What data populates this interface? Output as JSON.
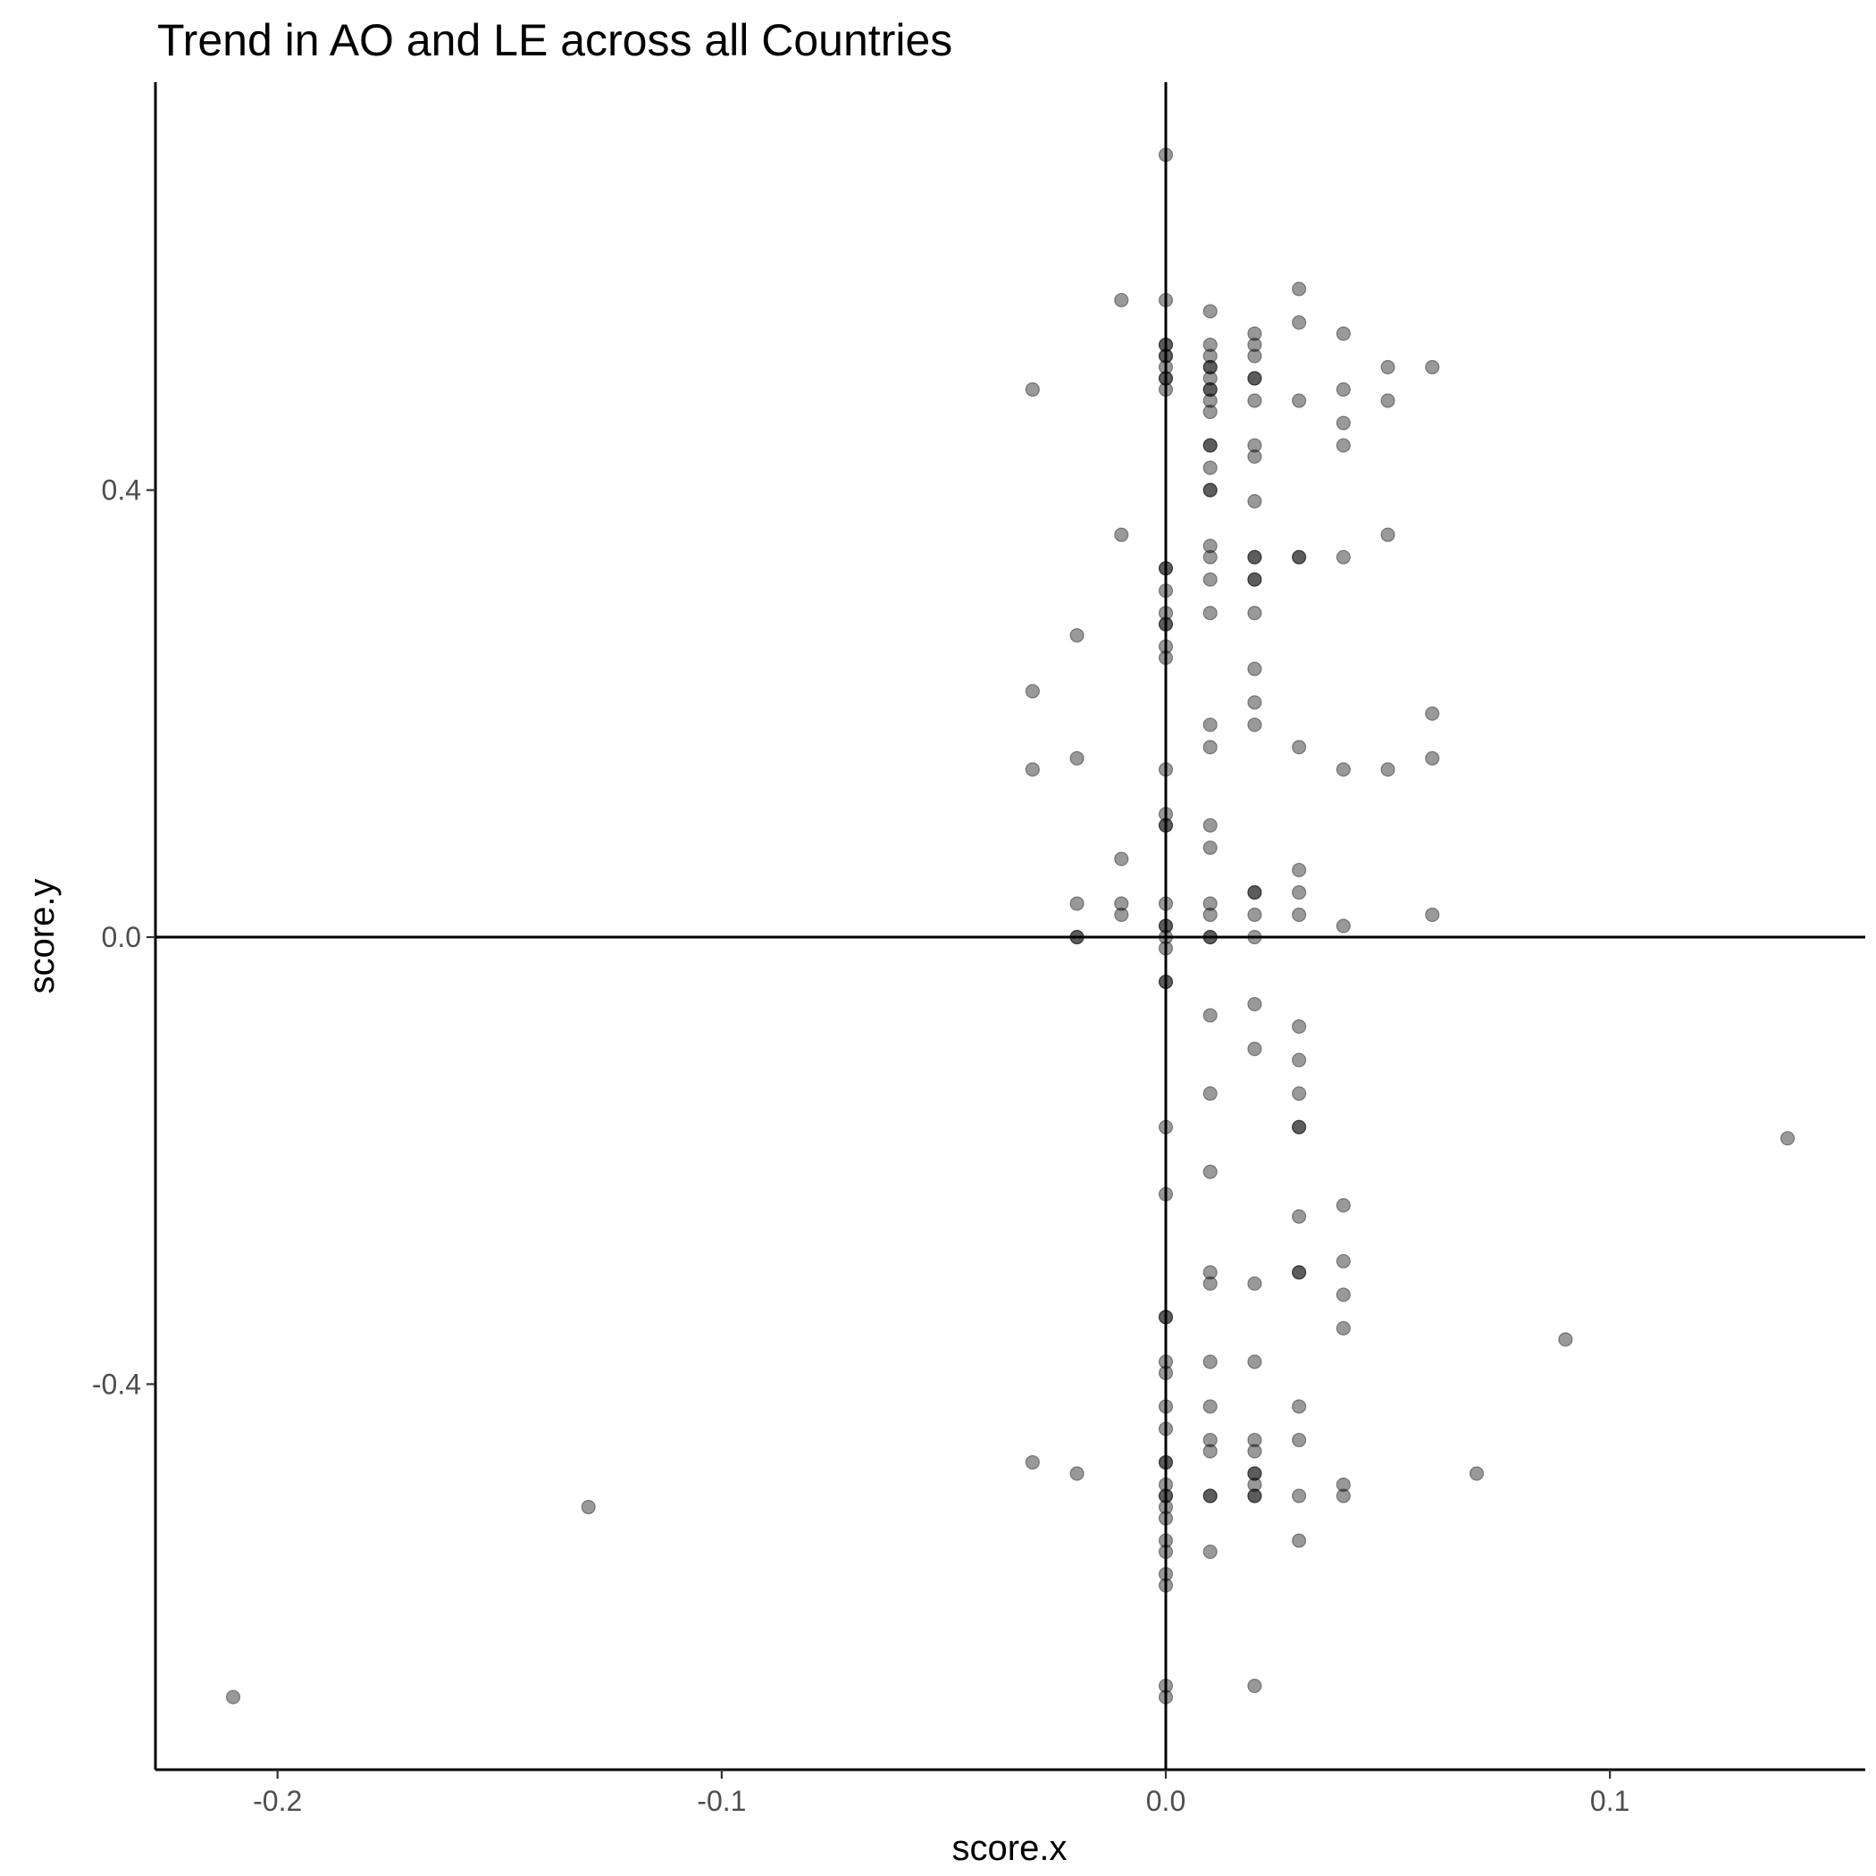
{
  "chart_data": {
    "type": "scatter",
    "title": "Trend in AO and LE across all Countries",
    "xlabel": "score.x",
    "ylabel": "score.y",
    "xlim": [
      -0.2275,
      0.1575
    ],
    "ylim": [
      -0.745,
      0.765
    ],
    "x_ticks": [
      -0.2,
      -0.1,
      0.0,
      0.1
    ],
    "x_tick_labels": [
      "-0.2",
      "-0.1",
      "0.0",
      "0.1"
    ],
    "y_ticks": [
      -0.4,
      0.0,
      0.4
    ],
    "y_tick_labels": [
      "-0.4",
      "0.0",
      "0.4"
    ],
    "reference_lines": {
      "x": 0,
      "y": 0
    },
    "grid": false,
    "legend": "none",
    "point_color": "#000000",
    "point_alpha": 0.4,
    "points": [
      {
        "x": -0.21,
        "y": -0.68
      },
      {
        "x": -0.13,
        "y": -0.51
      },
      {
        "x": -0.03,
        "y": 0.49
      },
      {
        "x": -0.03,
        "y": 0.22
      },
      {
        "x": -0.03,
        "y": 0.15
      },
      {
        "x": -0.03,
        "y": -0.47
      },
      {
        "x": -0.02,
        "y": 0.27
      },
      {
        "x": -0.02,
        "y": 0.16
      },
      {
        "x": -0.02,
        "y": 0.03
      },
      {
        "x": -0.02,
        "y": 0.0
      },
      {
        "x": -0.02,
        "y": 0.0
      },
      {
        "x": -0.02,
        "y": -0.48
      },
      {
        "x": -0.01,
        "y": 0.57
      },
      {
        "x": -0.01,
        "y": 0.36
      },
      {
        "x": -0.01,
        "y": 0.07
      },
      {
        "x": -0.01,
        "y": 0.03
      },
      {
        "x": -0.01,
        "y": 0.02
      },
      {
        "x": 0.0,
        "y": 0.7
      },
      {
        "x": 0.0,
        "y": 0.57
      },
      {
        "x": 0.0,
        "y": 0.53
      },
      {
        "x": 0.0,
        "y": 0.53
      },
      {
        "x": 0.0,
        "y": 0.52
      },
      {
        "x": 0.0,
        "y": 0.52
      },
      {
        "x": 0.0,
        "y": 0.51
      },
      {
        "x": 0.0,
        "y": 0.5
      },
      {
        "x": 0.0,
        "y": 0.5
      },
      {
        "x": 0.0,
        "y": 0.49
      },
      {
        "x": 0.0,
        "y": 0.33
      },
      {
        "x": 0.0,
        "y": 0.33
      },
      {
        "x": 0.0,
        "y": 0.31
      },
      {
        "x": 0.0,
        "y": 0.29
      },
      {
        "x": 0.0,
        "y": 0.28
      },
      {
        "x": 0.0,
        "y": 0.28
      },
      {
        "x": 0.0,
        "y": 0.26
      },
      {
        "x": 0.0,
        "y": 0.25
      },
      {
        "x": 0.0,
        "y": 0.15
      },
      {
        "x": 0.0,
        "y": 0.11
      },
      {
        "x": 0.0,
        "y": 0.1
      },
      {
        "x": 0.0,
        "y": 0.1
      },
      {
        "x": 0.0,
        "y": 0.03
      },
      {
        "x": 0.0,
        "y": 0.01
      },
      {
        "x": 0.0,
        "y": 0.01
      },
      {
        "x": 0.0,
        "y": 0.0
      },
      {
        "x": 0.0,
        "y": -0.01
      },
      {
        "x": 0.0,
        "y": -0.04
      },
      {
        "x": 0.0,
        "y": -0.04
      },
      {
        "x": 0.0,
        "y": -0.17
      },
      {
        "x": 0.0,
        "y": -0.23
      },
      {
        "x": 0.0,
        "y": -0.34
      },
      {
        "x": 0.0,
        "y": -0.34
      },
      {
        "x": 0.0,
        "y": -0.38
      },
      {
        "x": 0.0,
        "y": -0.39
      },
      {
        "x": 0.0,
        "y": -0.42
      },
      {
        "x": 0.0,
        "y": -0.44
      },
      {
        "x": 0.0,
        "y": -0.47
      },
      {
        "x": 0.0,
        "y": -0.47
      },
      {
        "x": 0.0,
        "y": -0.49
      },
      {
        "x": 0.0,
        "y": -0.5
      },
      {
        "x": 0.0,
        "y": -0.5
      },
      {
        "x": 0.0,
        "y": -0.51
      },
      {
        "x": 0.0,
        "y": -0.52
      },
      {
        "x": 0.0,
        "y": -0.54
      },
      {
        "x": 0.0,
        "y": -0.55
      },
      {
        "x": 0.0,
        "y": -0.57
      },
      {
        "x": 0.0,
        "y": -0.58
      },
      {
        "x": 0.0,
        "y": -0.67
      },
      {
        "x": 0.0,
        "y": -0.68
      },
      {
        "x": 0.01,
        "y": 0.56
      },
      {
        "x": 0.01,
        "y": 0.53
      },
      {
        "x": 0.01,
        "y": 0.52
      },
      {
        "x": 0.01,
        "y": 0.51
      },
      {
        "x": 0.01,
        "y": 0.51
      },
      {
        "x": 0.01,
        "y": 0.5
      },
      {
        "x": 0.01,
        "y": 0.49
      },
      {
        "x": 0.01,
        "y": 0.49
      },
      {
        "x": 0.01,
        "y": 0.48
      },
      {
        "x": 0.01,
        "y": 0.47
      },
      {
        "x": 0.01,
        "y": 0.44
      },
      {
        "x": 0.01,
        "y": 0.44
      },
      {
        "x": 0.01,
        "y": 0.42
      },
      {
        "x": 0.01,
        "y": 0.4
      },
      {
        "x": 0.01,
        "y": 0.4
      },
      {
        "x": 0.01,
        "y": 0.35
      },
      {
        "x": 0.01,
        "y": 0.34
      },
      {
        "x": 0.01,
        "y": 0.32
      },
      {
        "x": 0.01,
        "y": 0.29
      },
      {
        "x": 0.01,
        "y": 0.19
      },
      {
        "x": 0.01,
        "y": 0.17
      },
      {
        "x": 0.01,
        "y": 0.1
      },
      {
        "x": 0.01,
        "y": 0.08
      },
      {
        "x": 0.01,
        "y": 0.03
      },
      {
        "x": 0.01,
        "y": 0.02
      },
      {
        "x": 0.01,
        "y": 0.0
      },
      {
        "x": 0.01,
        "y": 0.0
      },
      {
        "x": 0.01,
        "y": -0.07
      },
      {
        "x": 0.01,
        "y": -0.14
      },
      {
        "x": 0.01,
        "y": -0.21
      },
      {
        "x": 0.01,
        "y": -0.3
      },
      {
        "x": 0.01,
        "y": -0.31
      },
      {
        "x": 0.01,
        "y": -0.38
      },
      {
        "x": 0.01,
        "y": -0.42
      },
      {
        "x": 0.01,
        "y": -0.45
      },
      {
        "x": 0.01,
        "y": -0.46
      },
      {
        "x": 0.01,
        "y": -0.5
      },
      {
        "x": 0.01,
        "y": -0.5
      },
      {
        "x": 0.01,
        "y": -0.55
      },
      {
        "x": 0.02,
        "y": 0.54
      },
      {
        "x": 0.02,
        "y": 0.53
      },
      {
        "x": 0.02,
        "y": 0.52
      },
      {
        "x": 0.02,
        "y": 0.5
      },
      {
        "x": 0.02,
        "y": 0.5
      },
      {
        "x": 0.02,
        "y": 0.48
      },
      {
        "x": 0.02,
        "y": 0.44
      },
      {
        "x": 0.02,
        "y": 0.43
      },
      {
        "x": 0.02,
        "y": 0.39
      },
      {
        "x": 0.02,
        "y": 0.34
      },
      {
        "x": 0.02,
        "y": 0.34
      },
      {
        "x": 0.02,
        "y": 0.32
      },
      {
        "x": 0.02,
        "y": 0.32
      },
      {
        "x": 0.02,
        "y": 0.29
      },
      {
        "x": 0.02,
        "y": 0.24
      },
      {
        "x": 0.02,
        "y": 0.21
      },
      {
        "x": 0.02,
        "y": 0.19
      },
      {
        "x": 0.02,
        "y": 0.04
      },
      {
        "x": 0.02,
        "y": 0.04
      },
      {
        "x": 0.02,
        "y": 0.02
      },
      {
        "x": 0.02,
        "y": 0.0
      },
      {
        "x": 0.02,
        "y": -0.06
      },
      {
        "x": 0.02,
        "y": -0.1
      },
      {
        "x": 0.02,
        "y": -0.31
      },
      {
        "x": 0.02,
        "y": -0.38
      },
      {
        "x": 0.02,
        "y": -0.45
      },
      {
        "x": 0.02,
        "y": -0.46
      },
      {
        "x": 0.02,
        "y": -0.48
      },
      {
        "x": 0.02,
        "y": -0.48
      },
      {
        "x": 0.02,
        "y": -0.49
      },
      {
        "x": 0.02,
        "y": -0.5
      },
      {
        "x": 0.02,
        "y": -0.5
      },
      {
        "x": 0.02,
        "y": -0.67
      },
      {
        "x": 0.03,
        "y": 0.58
      },
      {
        "x": 0.03,
        "y": 0.55
      },
      {
        "x": 0.03,
        "y": 0.48
      },
      {
        "x": 0.03,
        "y": 0.34
      },
      {
        "x": 0.03,
        "y": 0.34
      },
      {
        "x": 0.03,
        "y": 0.17
      },
      {
        "x": 0.03,
        "y": 0.06
      },
      {
        "x": 0.03,
        "y": 0.04
      },
      {
        "x": 0.03,
        "y": 0.02
      },
      {
        "x": 0.03,
        "y": -0.08
      },
      {
        "x": 0.03,
        "y": -0.11
      },
      {
        "x": 0.03,
        "y": -0.14
      },
      {
        "x": 0.03,
        "y": -0.17
      },
      {
        "x": 0.03,
        "y": -0.17
      },
      {
        "x": 0.03,
        "y": -0.25
      },
      {
        "x": 0.03,
        "y": -0.3
      },
      {
        "x": 0.03,
        "y": -0.3
      },
      {
        "x": 0.03,
        "y": -0.42
      },
      {
        "x": 0.03,
        "y": -0.45
      },
      {
        "x": 0.03,
        "y": -0.5
      },
      {
        "x": 0.03,
        "y": -0.54
      },
      {
        "x": 0.04,
        "y": 0.54
      },
      {
        "x": 0.04,
        "y": 0.49
      },
      {
        "x": 0.04,
        "y": 0.46
      },
      {
        "x": 0.04,
        "y": 0.44
      },
      {
        "x": 0.04,
        "y": 0.34
      },
      {
        "x": 0.04,
        "y": 0.15
      },
      {
        "x": 0.04,
        "y": 0.01
      },
      {
        "x": 0.04,
        "y": -0.24
      },
      {
        "x": 0.04,
        "y": -0.29
      },
      {
        "x": 0.04,
        "y": -0.32
      },
      {
        "x": 0.04,
        "y": -0.35
      },
      {
        "x": 0.04,
        "y": -0.49
      },
      {
        "x": 0.04,
        "y": -0.5
      },
      {
        "x": 0.05,
        "y": 0.51
      },
      {
        "x": 0.05,
        "y": 0.48
      },
      {
        "x": 0.05,
        "y": 0.36
      },
      {
        "x": 0.05,
        "y": 0.15
      },
      {
        "x": 0.06,
        "y": 0.51
      },
      {
        "x": 0.06,
        "y": 0.2
      },
      {
        "x": 0.06,
        "y": 0.16
      },
      {
        "x": 0.06,
        "y": 0.02
      },
      {
        "x": 0.07,
        "y": -0.48
      },
      {
        "x": 0.09,
        "y": -0.36
      },
      {
        "x": 0.14,
        "y": -0.18
      }
    ]
  }
}
